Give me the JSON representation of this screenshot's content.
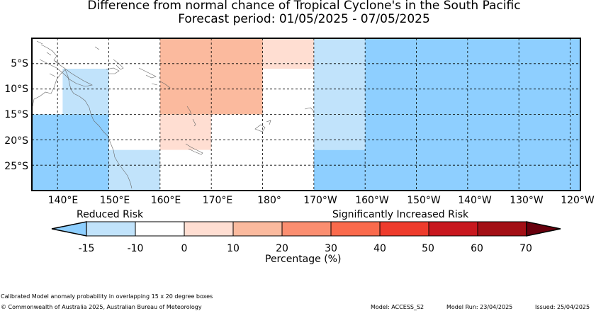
{
  "title": {
    "line1": "Difference from normal chance of Tropical Cyclone's in the South Pacific",
    "line2": "Forecast period: 01/05/2025 - 07/05/2025"
  },
  "map": {
    "lat_labels": [
      "5°S",
      "10°S",
      "15°S",
      "20°S",
      "25°S"
    ],
    "lon_labels": [
      "140°E",
      "150°E",
      "160°E",
      "170°E",
      "180°",
      "170°W",
      "160°W",
      "150°W",
      "140°W",
      "130°W",
      "120°W"
    ],
    "extent": {
      "lon_min_east": 135,
      "lon_max_east": 242,
      "lat_top_south": 0,
      "lat_bottom_south": 30
    },
    "anomaly_cells": [
      {
        "lon_from": 135,
        "lon_to": 150,
        "lat_from": 15,
        "lat_to": 30,
        "category": "-15"
      },
      {
        "lon_from": 141,
        "lon_to": 150,
        "lat_from": 6,
        "lat_to": 15,
        "category": "-10"
      },
      {
        "lon_from": 150,
        "lon_to": 160,
        "lat_from": 22,
        "lat_to": 30,
        "category": "-10"
      },
      {
        "lon_from": 150,
        "lon_to": 160,
        "lat_from": 0,
        "lat_to": 15,
        "category": "0"
      },
      {
        "lon_from": 160,
        "lon_to": 180,
        "lat_from": 0,
        "lat_to": 15,
        "category": "20"
      },
      {
        "lon_from": 160,
        "lon_to": 170,
        "lat_from": 15,
        "lat_to": 22,
        "category": "10"
      },
      {
        "lon_from": 160,
        "lon_to": 170,
        "lat_from": 22,
        "lat_to": 30,
        "category": "0"
      },
      {
        "lon_from": 170,
        "lon_to": 180,
        "lat_from": 15,
        "lat_to": 30,
        "category": "0"
      },
      {
        "lon_from": 180,
        "lon_to": 190,
        "lat_from": 0,
        "lat_to": 6,
        "category": "10"
      },
      {
        "lon_from": 180,
        "lon_to": 190,
        "lat_from": 6,
        "lat_to": 15,
        "category": "0"
      },
      {
        "lon_from": 190,
        "lon_to": 200,
        "lat_from": 0,
        "lat_to": 22,
        "category": "-10"
      },
      {
        "lon_from": 190,
        "lon_to": 200,
        "lat_from": 22,
        "lat_to": 30,
        "category": "-15"
      },
      {
        "lon_from": 200,
        "lon_to": 242,
        "lat_from": 0,
        "lat_to": 30,
        "category": "-15"
      }
    ]
  },
  "legend": {
    "reduced_label": "Reduced Risk",
    "increased_label": "Significantly Increased Risk",
    "tick_labels": [
      "-15",
      "-10",
      "0",
      "10",
      "20",
      "30",
      "40",
      "50",
      "60",
      "70"
    ],
    "axis_title": "Percentage (%)",
    "colors": {
      "under": "#8ecfff",
      "segments": [
        "#c1e3fb",
        "#ffffff",
        "#ffded2",
        "#fbba9e",
        "#fb8e70",
        "#fa6a4c",
        "#ee3b2c",
        "#c8171e",
        "#a30f15"
      ],
      "over": "#68000d"
    }
  },
  "footer": {
    "note": "Calibrated Model anomaly probability in overlapping 15 x 20 degree boxes",
    "copyright": "© Commonwealth of Australia 2025, Australian Bureau of Meteorology",
    "model": "Model: ACCESS_S2",
    "model_run": "Model Run: 23/04/2025",
    "issued": "Issued: 25/04/2025"
  }
}
